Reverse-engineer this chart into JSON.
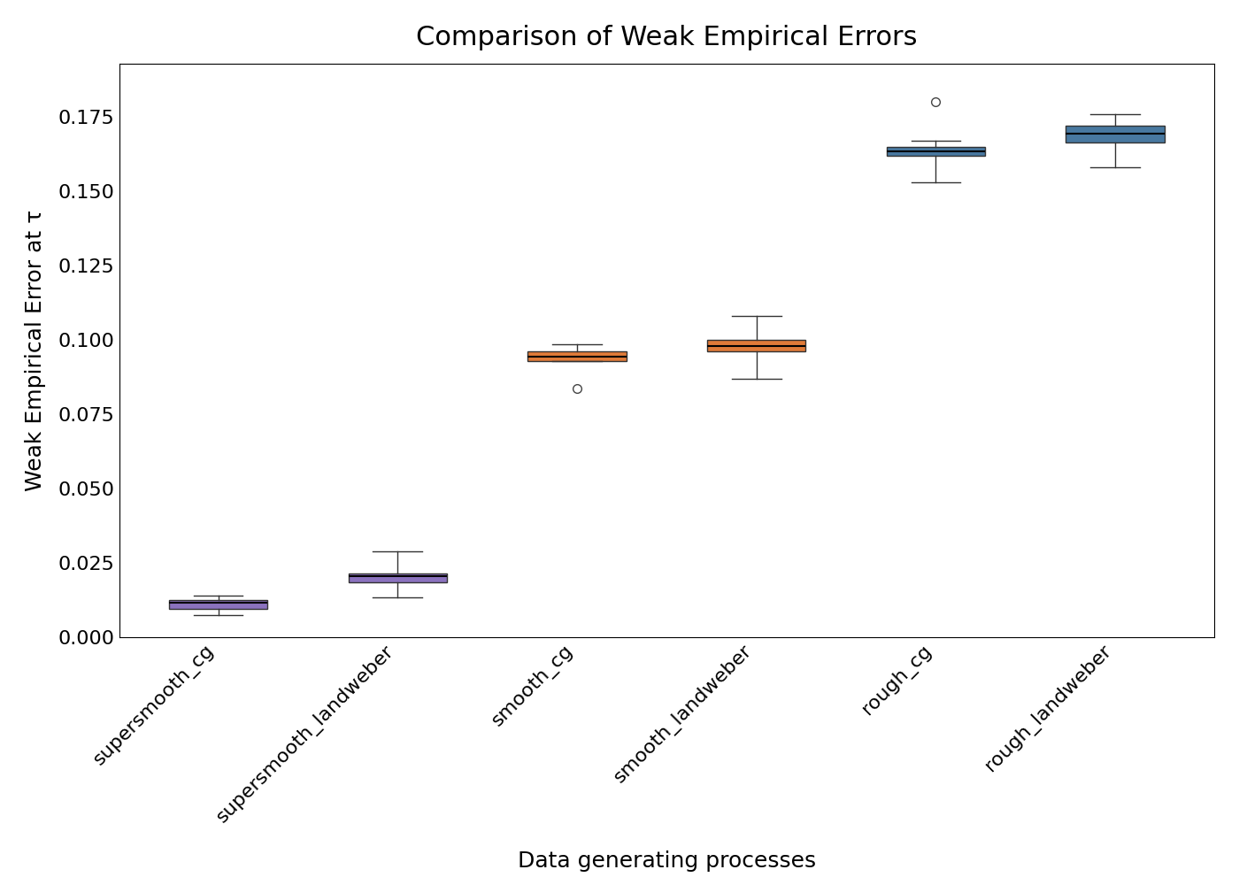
{
  "title": "Comparison of Weak Empirical Errors",
  "xlabel": "Data generating processes",
  "ylabel": "Weak Empirical Error at τ",
  "categories": [
    "supersmooth_cg",
    "supersmooth_landweber",
    "smooth_cg",
    "smooth_landweber",
    "rough_cg",
    "rough_landweber"
  ],
  "colors": {
    "supersmooth_cg": "#8B72BE",
    "supersmooth_landweber": "#8B72BE",
    "smooth_cg": "#E07B39",
    "smooth_landweber": "#E07B39",
    "rough_cg": "#4878A0",
    "rough_landweber": "#4878A0"
  },
  "box_data": {
    "supersmooth_cg": {
      "whislo": 0.0075,
      "q1": 0.0095,
      "med": 0.0115,
      "q3": 0.0125,
      "whishi": 0.014,
      "fliers": []
    },
    "supersmooth_landweber": {
      "whislo": 0.0135,
      "q1": 0.0185,
      "med": 0.0205,
      "q3": 0.0215,
      "whishi": 0.029,
      "fliers": []
    },
    "smooth_cg": {
      "whislo": 0.093,
      "q1": 0.093,
      "med": 0.0945,
      "q3": 0.096,
      "whishi": 0.0985,
      "fliers": [
        0.0835
      ]
    },
    "smooth_landweber": {
      "whislo": 0.087,
      "q1": 0.096,
      "med": 0.098,
      "q3": 0.1,
      "whishi": 0.108,
      "fliers": []
    },
    "rough_cg": {
      "whislo": 0.153,
      "q1": 0.162,
      "med": 0.1635,
      "q3": 0.165,
      "whishi": 0.167,
      "fliers": [
        0.18
      ]
    },
    "rough_landweber": {
      "whislo": 0.158,
      "q1": 0.1665,
      "med": 0.1695,
      "q3": 0.172,
      "whishi": 0.176,
      "fliers": []
    }
  },
  "ylim": [
    0.0,
    0.193
  ],
  "yticks": [
    0.0,
    0.025,
    0.05,
    0.075,
    0.1,
    0.125,
    0.15,
    0.175
  ],
  "ytick_labels": [
    "0.000",
    "0.025",
    "0.050",
    "0.075",
    "0.100",
    "0.125",
    "0.150",
    "0.175"
  ],
  "title_fontsize": 22,
  "label_fontsize": 18,
  "tick_fontsize": 16,
  "box_width": 0.55
}
